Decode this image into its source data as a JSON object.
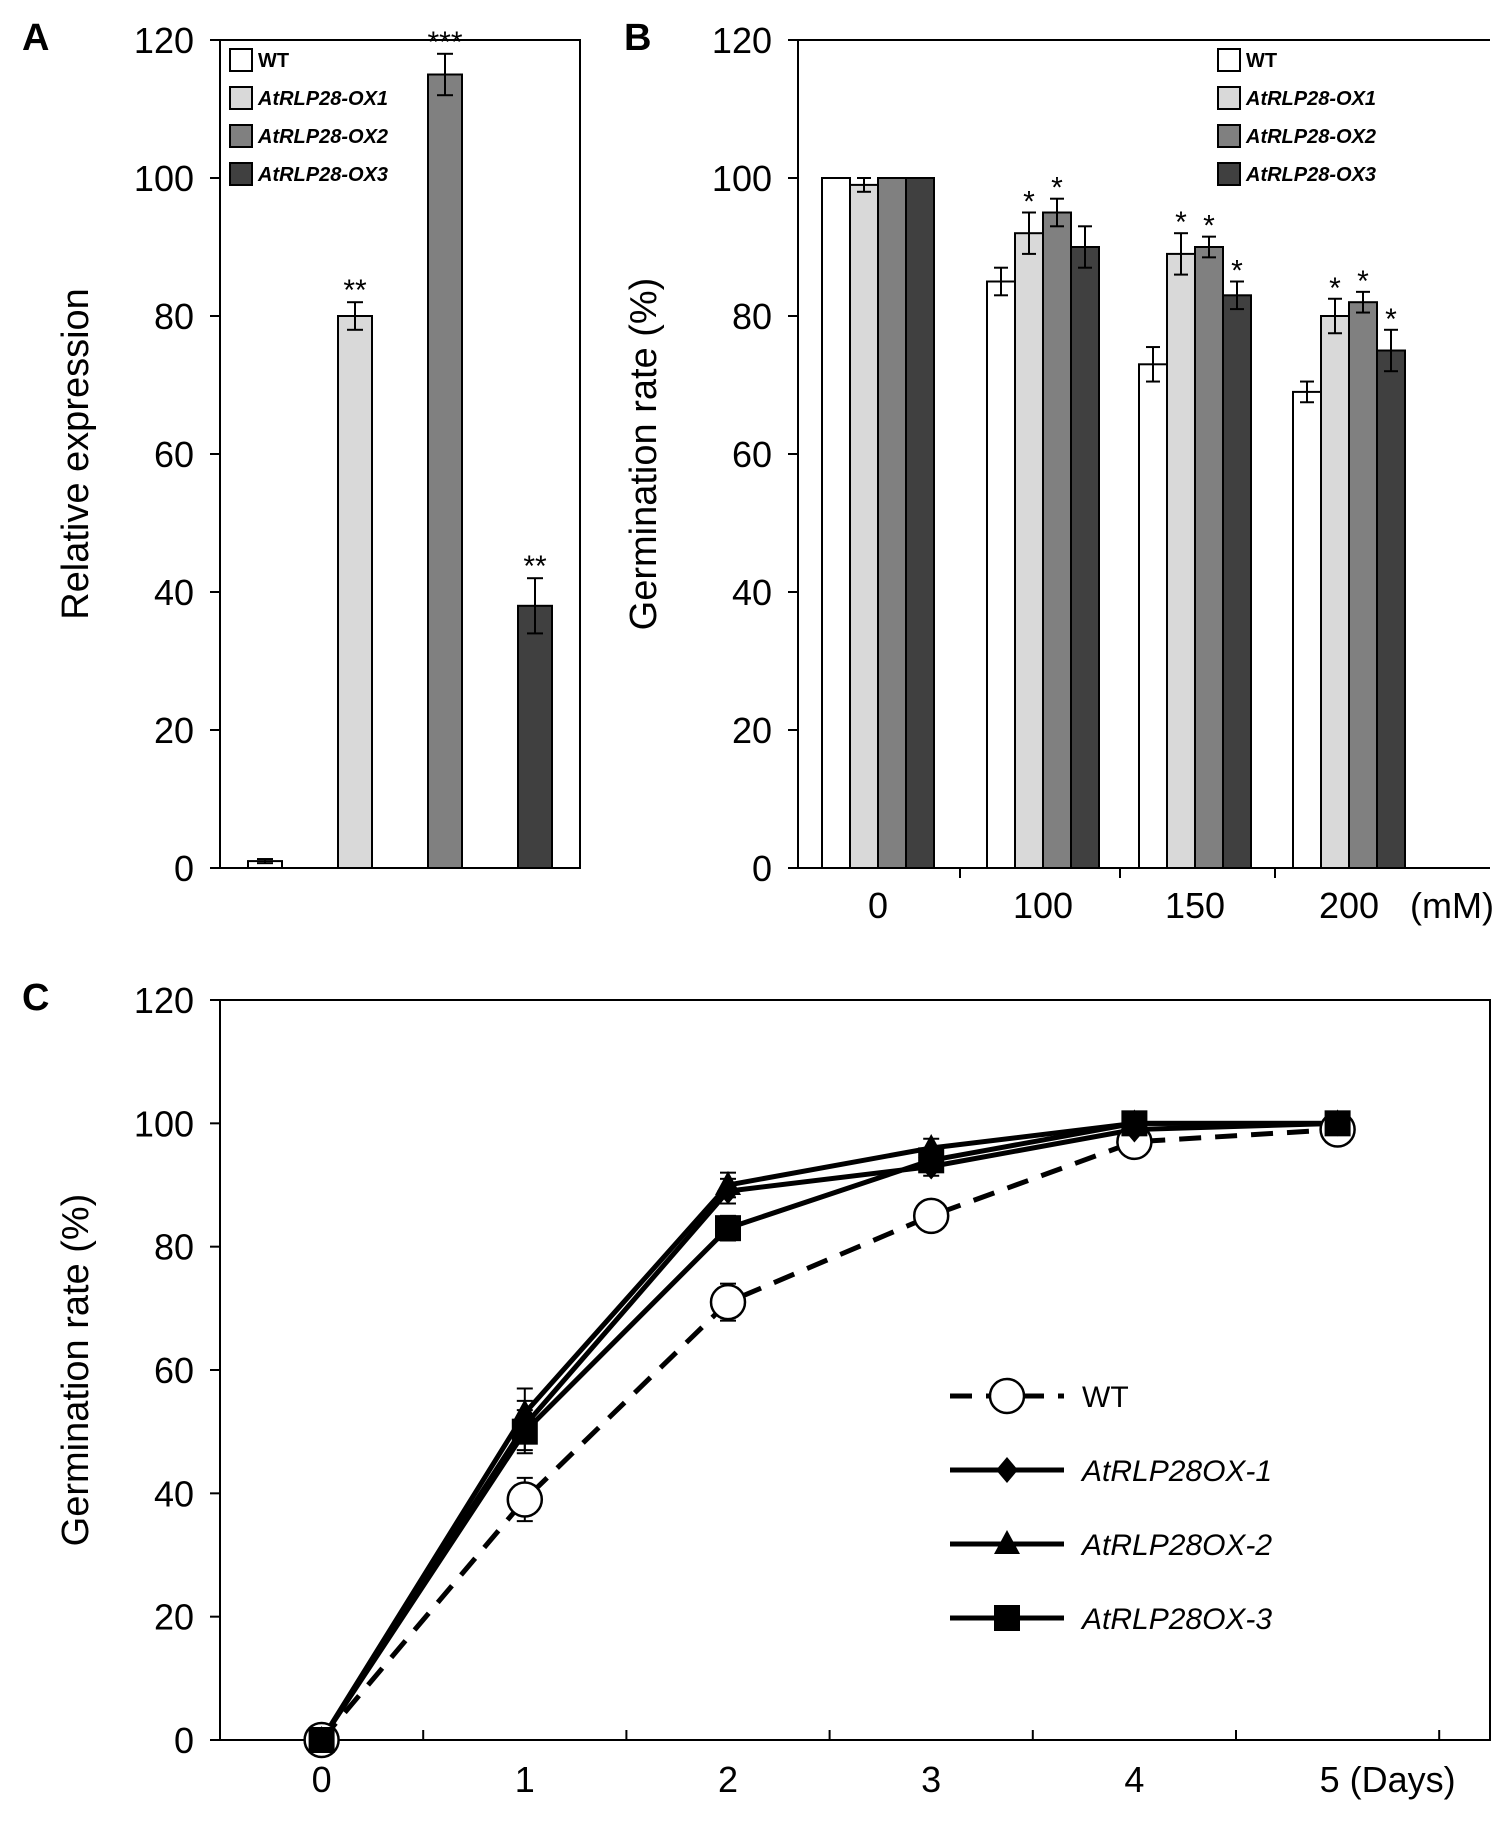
{
  "chart_data": [
    {
      "panel": "A",
      "type": "bar",
      "title": "",
      "xlabel": "",
      "ylabel": "Relative expression",
      "ylim": [
        0,
        120
      ],
      "yticks": [
        0,
        20,
        40,
        60,
        80,
        100,
        120
      ],
      "categories": [
        "WT",
        "AtRLP28-OX1",
        "AtRLP28-OX2",
        "AtRLP28-OX3"
      ],
      "values": [
        1,
        80,
        115,
        38
      ],
      "errors": [
        0.3,
        2,
        3,
        4
      ],
      "significance": [
        "",
        "**",
        "***",
        "**"
      ],
      "colors": [
        "#ffffff",
        "#d9d9d9",
        "#808080",
        "#404040"
      ],
      "legend": [
        {
          "label": "WT",
          "color": "#ffffff",
          "italic": false
        },
        {
          "label": "AtRLP28-OX1",
          "color": "#d9d9d9",
          "italic": true
        },
        {
          "label": "AtRLP28-OX2",
          "color": "#808080",
          "italic": true
        },
        {
          "label": "AtRLP28-OX3",
          "color": "#404040",
          "italic": true
        }
      ],
      "legend_position": "top-right"
    },
    {
      "panel": "B",
      "type": "bar",
      "title": "",
      "xlabel": "",
      "ylabel": "Germination rate (%)",
      "ylim": [
        0,
        120
      ],
      "yticks": [
        0,
        20,
        40,
        60,
        80,
        100,
        120
      ],
      "categories": [
        "0",
        "100",
        "150",
        "200"
      ],
      "unit_label": "(mM)",
      "series": [
        {
          "name": "WT",
          "color": "#ffffff",
          "values": [
            100,
            85,
            73,
            69
          ],
          "errors": [
            0,
            2,
            2.5,
            1.5
          ],
          "significance": [
            "",
            "",
            "",
            ""
          ]
        },
        {
          "name": "AtRLP28-OX1",
          "color": "#d9d9d9",
          "values": [
            99,
            92,
            89,
            80
          ],
          "errors": [
            1,
            3,
            3,
            2.5
          ],
          "significance": [
            "",
            "*",
            "*",
            "*"
          ]
        },
        {
          "name": "AtRLP28-OX2",
          "color": "#808080",
          "values": [
            100,
            95,
            90,
            82
          ],
          "errors": [
            0,
            2,
            1.5,
            1.5
          ],
          "significance": [
            "",
            "*",
            "*",
            "*"
          ]
        },
        {
          "name": "AtRLP28-OX3",
          "color": "#404040",
          "values": [
            100,
            90,
            83,
            75
          ],
          "errors": [
            0,
            3,
            2,
            3
          ],
          "significance": [
            "",
            "",
            "*",
            "*"
          ]
        }
      ],
      "legend_position": "top-right"
    },
    {
      "panel": "C",
      "type": "line",
      "title": "",
      "xlabel": "",
      "ylabel": "Germination rate (%)",
      "ylim": [
        0,
        120
      ],
      "yticks": [
        0,
        20,
        40,
        60,
        80,
        100,
        120
      ],
      "xlim": [
        -0.5,
        5.75
      ],
      "x": [
        0,
        1,
        2,
        3,
        4,
        5
      ],
      "xtick_labels": [
        "0",
        "1",
        "2",
        "3",
        "4",
        "5 (Days)"
      ],
      "series": [
        {
          "name": "WT",
          "marker": "open-circle",
          "dashed": true,
          "italic": false,
          "values": [
            0,
            39,
            71,
            85,
            97,
            99
          ],
          "errors": [
            0,
            3.5,
            3,
            2,
            1.5,
            0.5
          ]
        },
        {
          "name": "AtRLP28OX-1",
          "marker": "diamond",
          "dashed": false,
          "italic": true,
          "values": [
            0,
            51,
            89,
            93,
            99,
            100
          ],
          "errors": [
            0,
            4,
            2,
            1.5,
            0.5,
            0
          ]
        },
        {
          "name": "AtRLP28OX-2",
          "marker": "triangle",
          "dashed": false,
          "italic": true,
          "values": [
            0,
            53,
            90,
            96,
            100,
            100
          ],
          "errors": [
            0,
            4,
            2,
            1.5,
            0,
            0
          ]
        },
        {
          "name": "AtRLP28OX-3",
          "marker": "square",
          "dashed": false,
          "italic": true,
          "values": [
            0,
            50,
            83,
            94,
            100,
            100
          ],
          "errors": [
            0,
            3.5,
            2,
            1.5,
            0,
            0
          ]
        }
      ],
      "legend_position": "center-right"
    }
  ]
}
